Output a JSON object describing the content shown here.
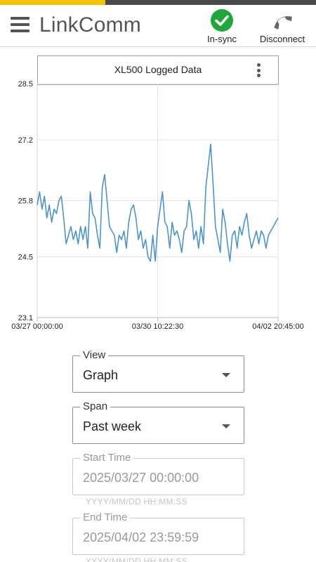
{
  "app": {
    "title": "LinkComm"
  },
  "header": {
    "sync_label": "In-sync",
    "disconnect_label": "Disconnect"
  },
  "chart_card": {
    "title": "XL500 Logged Data"
  },
  "chart_data": {
    "type": "line",
    "title": "XL500 Logged Data",
    "xlabel": "",
    "ylabel": "",
    "ylim": [
      23.1,
      28.5
    ],
    "yticks": [
      "28.5",
      "27.2",
      "25.8",
      "24.5",
      "23.1"
    ],
    "xticks": [
      "03/27 00:00:00",
      "03/30 10:22:30",
      "04/02 20:45:00"
    ],
    "grid": true,
    "series": [
      {
        "color": "#4b94cf",
        "x": [
          0,
          0.01,
          0.02,
          0.03,
          0.04,
          0.05,
          0.06,
          0.07,
          0.08,
          0.09,
          0.1,
          0.11,
          0.12,
          0.13,
          0.14,
          0.15,
          0.16,
          0.17,
          0.18,
          0.19,
          0.2,
          0.21,
          0.22,
          0.23,
          0.24,
          0.25,
          0.26,
          0.27,
          0.28,
          0.29,
          0.3,
          0.31,
          0.32,
          0.33,
          0.34,
          0.35,
          0.36,
          0.37,
          0.38,
          0.39,
          0.4,
          0.41,
          0.42,
          0.43,
          0.44,
          0.45,
          0.46,
          0.47,
          0.48,
          0.49,
          0.5,
          0.51,
          0.52,
          0.53,
          0.54,
          0.55,
          0.56,
          0.57,
          0.58,
          0.59,
          0.6,
          0.61,
          0.62,
          0.63,
          0.64,
          0.65,
          0.66,
          0.67,
          0.68,
          0.69,
          0.7,
          0.71,
          0.72,
          0.73,
          0.74,
          0.75,
          0.76,
          0.77,
          0.78,
          0.79,
          0.8,
          0.81,
          0.82,
          0.83,
          0.84,
          0.85,
          0.86,
          0.87,
          0.88,
          0.89,
          0.9,
          0.91,
          0.92,
          0.93,
          0.94,
          0.95,
          0.96,
          0.97,
          0.98,
          0.99,
          1.0
        ],
        "y": [
          25.7,
          26.0,
          25.6,
          25.9,
          25.4,
          25.7,
          25.3,
          25.6,
          25.5,
          25.8,
          25.9,
          25.4,
          24.8,
          25.0,
          25.2,
          24.9,
          25.1,
          24.8,
          25.2,
          24.9,
          25.2,
          24.7,
          26.0,
          25.5,
          25.4,
          25.0,
          24.7,
          26.1,
          26.4,
          25.8,
          25.2,
          25.1,
          25.0,
          24.6,
          25.0,
          24.9,
          25.1,
          24.7,
          25.3,
          25.6,
          25.7,
          25.4,
          24.9,
          25.1,
          24.7,
          24.9,
          24.5,
          24.4,
          25.0,
          24.4,
          25.2,
          25.6,
          26.0,
          25.3,
          25.2,
          24.7,
          25.3,
          25.0,
          25.1,
          24.9,
          24.6,
          25.1,
          25.2,
          25.8,
          25.5,
          24.9,
          25.1,
          24.7,
          25.2,
          24.8,
          26.1,
          26.6,
          27.1,
          26.2,
          25.2,
          24.9,
          24.6,
          25.6,
          25.3,
          24.8,
          24.4,
          25.0,
          25.1,
          24.7,
          25.2,
          25.0,
          25.3,
          25.5,
          25.0,
          24.7,
          24.9,
          25.1,
          24.8,
          25.1,
          25.0,
          24.7,
          25.0,
          25.1,
          25.2,
          25.3,
          25.4
        ]
      }
    ]
  },
  "form": {
    "view": {
      "label": "View",
      "value": "Graph"
    },
    "span": {
      "label": "Span",
      "value": "Past week"
    },
    "start_time": {
      "label": "Start Time",
      "value": "2025/03/27 00:00:00",
      "hint": "YYYY/MM/DD HH:MM:SS"
    },
    "end_time": {
      "label": "End Time",
      "value": "2025/04/02 23:59:59",
      "hint": "YYYY/MM/DD HH:MM:SS"
    }
  }
}
